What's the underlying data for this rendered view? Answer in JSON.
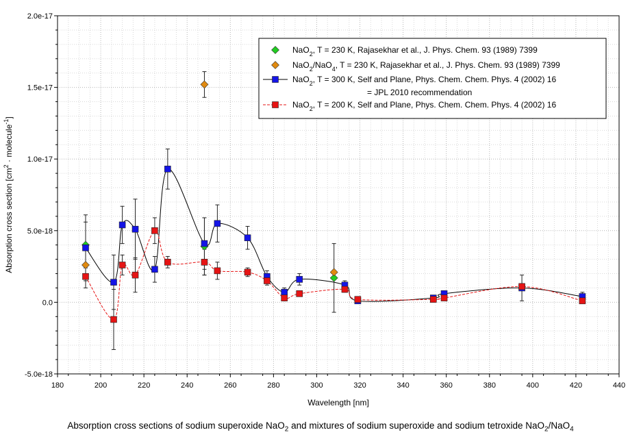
{
  "chart_data": {
    "type": "scatter",
    "title": "",
    "xlabel": "Wavelength [nm]",
    "ylabel": {
      "main": "Absorption cross section [cm",
      "sup1": "2",
      "mid": " · molecule",
      "sup2": "-1",
      "end": "]"
    },
    "xlim": [
      180,
      440
    ],
    "ylim": [
      -5e-18,
      2e-17
    ],
    "x_ticks": [
      180,
      200,
      220,
      240,
      260,
      280,
      300,
      320,
      340,
      360,
      380,
      400,
      420,
      440
    ],
    "y_ticks": [
      {
        "value": -5e-18,
        "label": "-5.0e-18"
      },
      {
        "value": 0,
        "label": "0.0"
      },
      {
        "value": 5e-18,
        "label": "5.0e-18"
      },
      {
        "value": 1e-17,
        "label": "1.0e-17"
      },
      {
        "value": 1.5e-17,
        "label": "1.5e-17"
      },
      {
        "value": 2e-17,
        "label": "2.0e-17"
      }
    ],
    "grid": true,
    "legend_position": "top-right",
    "series": [
      {
        "name": "nao2-230-rajasekhar",
        "legend_parts": [
          [
            "NaO",
            ""
          ],
          [
            "2",
            "sub"
          ],
          [
            ", T = 230 K, Rajasekhar et al., J. Phys. Chem. 93 (1989) 7399",
            ""
          ]
        ],
        "marker": "diamond",
        "color": "#22cc22",
        "line": "none",
        "points": [
          {
            "x": 193,
            "y": 4e-18,
            "err": 1.6e-18
          },
          {
            "x": 248,
            "y": 3.9e-18,
            "err": 2e-18
          },
          {
            "x": 308,
            "y": 1.7e-18,
            "err": 2.4e-18
          }
        ]
      },
      {
        "name": "nao2-nao4-230-rajasekhar",
        "legend_parts": [
          [
            "NaO",
            ""
          ],
          [
            "2",
            "sub"
          ],
          [
            "/NaO",
            ""
          ],
          [
            "4",
            "sub"
          ],
          [
            ", T = 230 K, Rajasekhar et al., J. Phys. Chem. 93 (1989) 7399",
            ""
          ]
        ],
        "marker": "diamond",
        "color": "#e08a10",
        "line": "none",
        "points": [
          {
            "x": 193,
            "y": 2.6e-18,
            "err": 0
          },
          {
            "x": 248,
            "y": 1.52e-17,
            "err": 9e-19
          },
          {
            "x": 308,
            "y": 2.1e-18,
            "err": 0
          }
        ]
      },
      {
        "name": "nao2-300-self-plane",
        "legend_parts": [
          [
            "NaO",
            ""
          ],
          [
            "2",
            "sub"
          ],
          [
            ", T = 300 K, Self and Plane, Phys. Chem. Chem. Phys. 4 (2002) 16",
            ""
          ]
        ],
        "legend_line2": "= JPL 2010 recommendation",
        "marker": "square",
        "color": "#1414e6",
        "line": "solid",
        "line_color": "#000000",
        "points": [
          {
            "x": 193,
            "y": 3.8e-18,
            "err": 2.3e-18
          },
          {
            "x": 206,
            "y": 1.4e-18,
            "err": 1.9e-18
          },
          {
            "x": 210,
            "y": 5.4e-18,
            "err": 1.3e-18
          },
          {
            "x": 216,
            "y": 5.1e-18,
            "err": 2.1e-18
          },
          {
            "x": 225,
            "y": 2.3e-18,
            "err": 9e-19
          },
          {
            "x": 231,
            "y": 9.3e-18,
            "err": 1.4e-18
          },
          {
            "x": 248,
            "y": 4.1e-18,
            "err": 1.8e-18
          },
          {
            "x": 254,
            "y": 5.5e-18,
            "err": 1.3e-18
          },
          {
            "x": 268,
            "y": 4.5e-18,
            "err": 8e-19
          },
          {
            "x": 277,
            "y": 1.8e-18,
            "err": 4e-19
          },
          {
            "x": 285,
            "y": 7e-19,
            "err": 3e-19
          },
          {
            "x": 292,
            "y": 1.6e-18,
            "err": 4e-19
          },
          {
            "x": 313,
            "y": 1.2e-18,
            "err": 3e-19
          },
          {
            "x": 319,
            "y": 1e-19,
            "err": 1e-19
          },
          {
            "x": 354,
            "y": 3e-19,
            "err": 1e-19
          },
          {
            "x": 359,
            "y": 6e-19,
            "err": 1e-19
          },
          {
            "x": 395,
            "y": 1e-18,
            "err": 9e-19
          },
          {
            "x": 423,
            "y": 4e-19,
            "err": 3e-19
          }
        ]
      },
      {
        "name": "nao2-200-self-plane",
        "legend_parts": [
          [
            "NaO",
            ""
          ],
          [
            "2",
            "sub"
          ],
          [
            ", T = 200 K, Self and Plane, Phys. Chem. Chem. Phys. 4 (2002) 16",
            ""
          ]
        ],
        "marker": "square",
        "color": "#e61414",
        "line": "dashed",
        "line_color": "#e61414",
        "points": [
          {
            "x": 193,
            "y": 1.8e-18,
            "err": 8e-19
          },
          {
            "x": 206,
            "y": -1.2e-18,
            "err": 2.1e-18
          },
          {
            "x": 210,
            "y": 2.6e-18,
            "err": 7e-19
          },
          {
            "x": 216,
            "y": 1.9e-18,
            "err": 1.2e-18
          },
          {
            "x": 225,
            "y": 5e-18,
            "err": 9e-19
          },
          {
            "x": 231,
            "y": 2.8e-18,
            "err": 4e-19
          },
          {
            "x": 248,
            "y": 2.8e-18,
            "err": 9e-19
          },
          {
            "x": 254,
            "y": 2.2e-18,
            "err": 6e-19
          },
          {
            "x": 268,
            "y": 2.1e-18,
            "err": 3e-19
          },
          {
            "x": 277,
            "y": 1.5e-18,
            "err": 3e-19
          },
          {
            "x": 285,
            "y": 3e-19,
            "err": 2e-19
          },
          {
            "x": 292,
            "y": 6e-19,
            "err": 1e-19
          },
          {
            "x": 313,
            "y": 9e-19,
            "err": 2e-19
          },
          {
            "x": 319,
            "y": 2e-19,
            "err": 1e-19
          },
          {
            "x": 354,
            "y": 2e-19,
            "err": 1e-19
          },
          {
            "x": 359,
            "y": 3e-19,
            "err": 1e-19
          },
          {
            "x": 395,
            "y": 1.1e-18,
            "err": 2e-19
          },
          {
            "x": 423,
            "y": 1e-19,
            "err": 1e-19
          }
        ]
      }
    ]
  },
  "caption": {
    "part1": "Absorption cross sections of sodium superoxide NaO",
    "sub1": "2",
    "part2": " and mixtures of sodium superoxide and sodium tetroxide NaO",
    "sub2": "2",
    "part3": "/NaO",
    "sub3": "4"
  }
}
